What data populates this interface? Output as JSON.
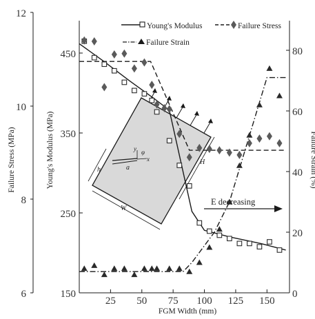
{
  "colors": {
    "line": "#1a1a1a",
    "marker": "#2a2a2a",
    "diamond": "#5a5a5a",
    "specimen_fill": "#d9d9d9",
    "background": "#ffffff"
  },
  "chart_data": {
    "type": "line",
    "xlabel": "FGM Width (mm)",
    "xlim": [
      0,
      168
    ],
    "x_ticks": [
      25,
      50,
      75,
      100,
      125,
      150
    ],
    "axes": {
      "failure_stress": {
        "label": "Failure Stress (MPa)",
        "side": "left-outer",
        "ylim": [
          6,
          12
        ],
        "ticks": [
          6,
          8,
          10,
          12
        ]
      },
      "youngs_modulus": {
        "label": "Young's Modulus (MPa)",
        "side": "left-inner",
        "ylim": [
          150,
          490
        ],
        "ticks": [
          150,
          250,
          350,
          450
        ]
      },
      "failure_strain": {
        "label": "Failure Strain (%)",
        "side": "right",
        "ylim": [
          0,
          90
        ],
        "ticks": [
          0,
          20,
          40,
          60,
          80
        ]
      }
    },
    "legend": {
      "placement": "top",
      "entries": [
        "Young's Modulus",
        "Failure Stress",
        "Failure Strain"
      ]
    },
    "series": [
      {
        "name": "Young's Modulus",
        "axis": "youngs_modulus",
        "marker": "open-square",
        "x": [
          4,
          12,
          20,
          28,
          36,
          44,
          52,
          58,
          62,
          72,
          80,
          88,
          96,
          104,
          112,
          120,
          128,
          136,
          144,
          152,
          160
        ],
        "y": [
          456,
          436,
          428,
          420,
          406,
          396,
          392,
          384,
          370,
          335,
          305,
          280,
          235,
          225,
          220,
          216,
          210,
          210,
          206,
          212,
          202
        ]
      },
      {
        "name": "Young's Modulus fit",
        "axis": "youngs_modulus",
        "style": "solid",
        "x": [
          0,
          20,
          40,
          60,
          72,
          90,
          100,
          120,
          145,
          165
        ],
        "y": [
          453,
          431,
          408,
          386,
          372,
          249,
          226,
          218,
          210,
          202
        ]
      },
      {
        "name": "Failure Stress",
        "axis": "failure_stress",
        "marker": "filled-diamond",
        "x": [
          4,
          12,
          20,
          28,
          36,
          44,
          52,
          58,
          62,
          68,
          72,
          80,
          88,
          96,
          104,
          112,
          120,
          128,
          136,
          144,
          152,
          160
        ],
        "y": [
          11.4,
          11.38,
          10.4,
          11.1,
          11.12,
          10.8,
          10.93,
          10.45,
          10.03,
          9.95,
          9.93,
          9.4,
          8.9,
          9.1,
          9.08,
          9.05,
          9.0,
          8.95,
          9.2,
          9.3,
          9.35,
          9.2
        ]
      },
      {
        "name": "Failure Stress fit",
        "axis": "failure_stress",
        "style": "dashed",
        "x": [
          0,
          57,
          88,
          165
        ],
        "y": [
          10.95,
          10.95,
          9.05,
          9.05
        ]
      },
      {
        "name": "Failure Strain",
        "axis": "failure_strain",
        "marker": "filled-triangle",
        "x": [
          4,
          12,
          20,
          28,
          36,
          44,
          52,
          58,
          62,
          72,
          80,
          88,
          96,
          104,
          112,
          120,
          128,
          136,
          144,
          152,
          160
        ],
        "y": [
          8,
          9,
          6,
          8,
          8,
          6,
          8,
          8,
          8,
          8,
          8,
          7,
          10,
          15,
          21,
          30,
          42,
          52,
          62,
          74,
          65
        ]
      },
      {
        "name": "Failure Strain fit",
        "axis": "failure_strain",
        "style": "dash-dot",
        "x": [
          0,
          83,
          90,
          108,
          120,
          150,
          165
        ],
        "y": [
          7,
          7,
          10,
          20,
          30,
          71,
          71
        ]
      }
    ],
    "annotations": {
      "arrow_label": "E decreasing",
      "specimen_labels": [
        "h",
        "a",
        "W",
        "H",
        "y",
        "φ",
        "x"
      ]
    }
  }
}
